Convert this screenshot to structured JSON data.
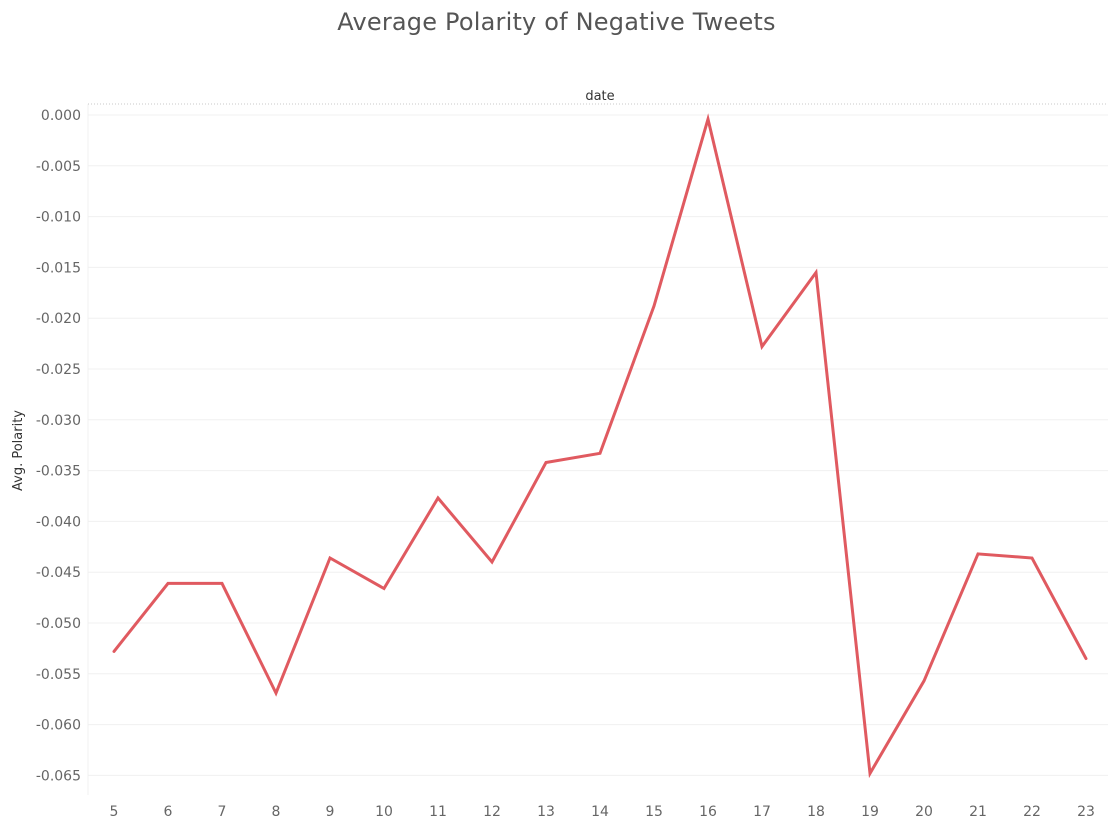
{
  "chart_data": {
    "type": "line",
    "title": "Average Polarity of Negative Tweets",
    "xlabel": "date",
    "ylabel": "Avg. Polarity",
    "x": [
      5,
      6,
      7,
      8,
      9,
      10,
      11,
      12,
      13,
      14,
      15,
      16,
      17,
      18,
      19,
      20,
      21,
      22,
      23
    ],
    "series": [
      {
        "values": [
          -0.0528,
          -0.0461,
          -0.0461,
          -0.0569,
          -0.0436,
          -0.0466,
          -0.0377,
          -0.044,
          -0.0342,
          -0.0333,
          -0.0188,
          -0.0004,
          -0.0228,
          -0.0155,
          -0.0648,
          -0.0557,
          -0.0432,
          -0.0436,
          -0.0535
        ]
      }
    ],
    "yticks": [
      "0.000",
      "-0.005",
      "-0.010",
      "-0.015",
      "-0.020",
      "-0.025",
      "-0.030",
      "-0.035",
      "-0.040",
      "-0.045",
      "-0.050",
      "-0.055",
      "-0.060",
      "-0.065"
    ],
    "ylim": [
      -0.068,
      0.001
    ],
    "grid": true,
    "line_color": "#e05a60"
  }
}
